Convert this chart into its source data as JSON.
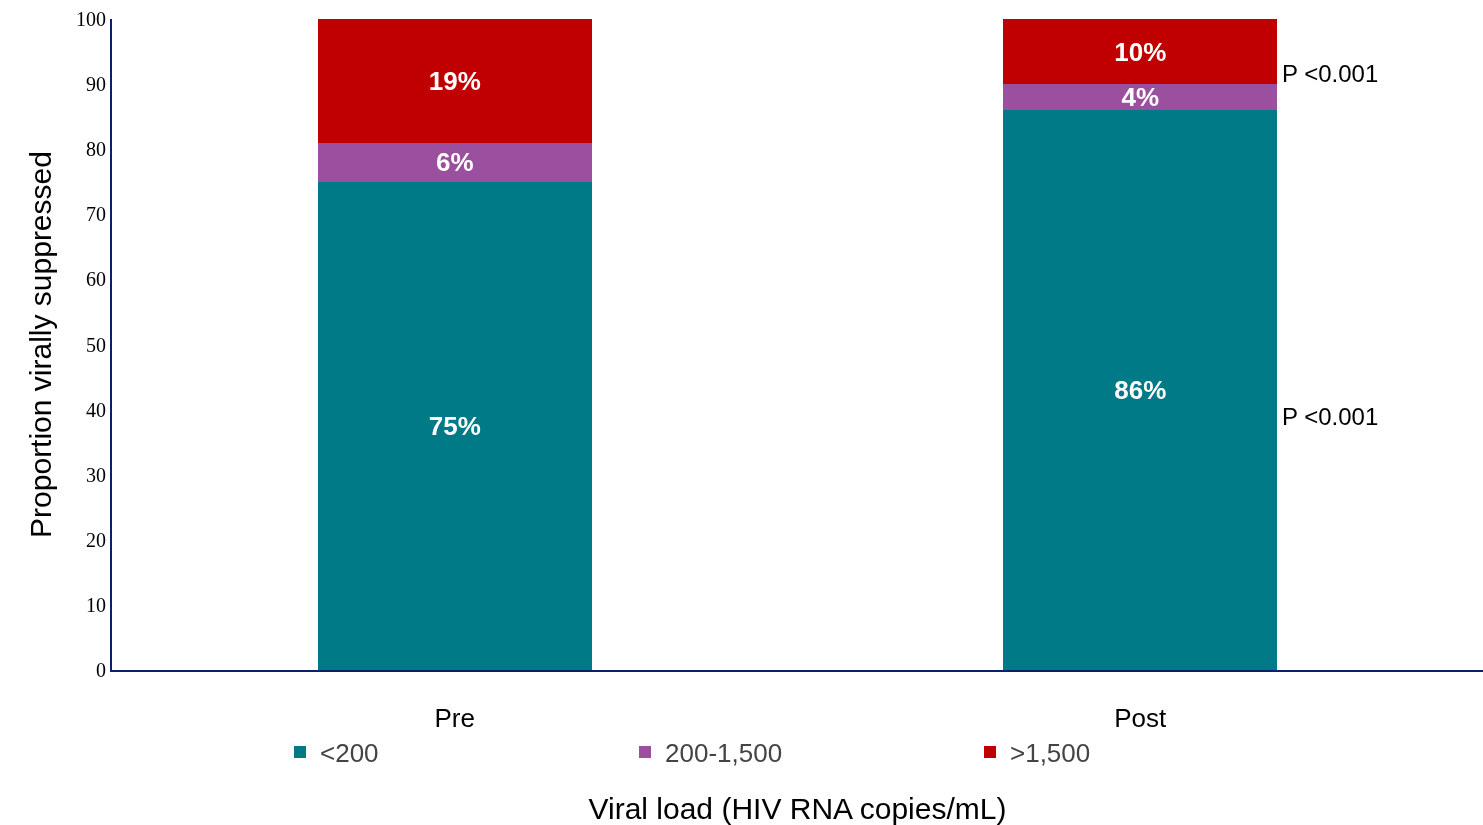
{
  "chart_data": {
    "type": "bar",
    "stacked": true,
    "xlabel": "Viral load (HIV RNA copies/mL)",
    "ylabel": "Proportion virally suppressed",
    "categories": [
      "Pre",
      "Post"
    ],
    "series": [
      {
        "name": "<200",
        "color": "#007a87",
        "values": [
          75,
          86
        ],
        "value_labels": [
          "75%",
          "86%"
        ]
      },
      {
        "name": "200-1,500",
        "color": "#9b4f9f",
        "values": [
          6,
          4
        ],
        "value_labels": [
          "6%",
          "4%"
        ]
      },
      {
        "name": ">1,500",
        "color": "#c00000",
        "values": [
          19,
          10
        ],
        "value_labels": [
          "19%",
          "10%"
        ]
      }
    ],
    "ylim": [
      0,
      100
    ],
    "yticks": [
      0,
      10,
      20,
      30,
      40,
      50,
      60,
      70,
      80,
      90,
      100
    ],
    "legend": "bottom",
    "annotations": [
      "P <0.001",
      "P <0.001"
    ]
  }
}
